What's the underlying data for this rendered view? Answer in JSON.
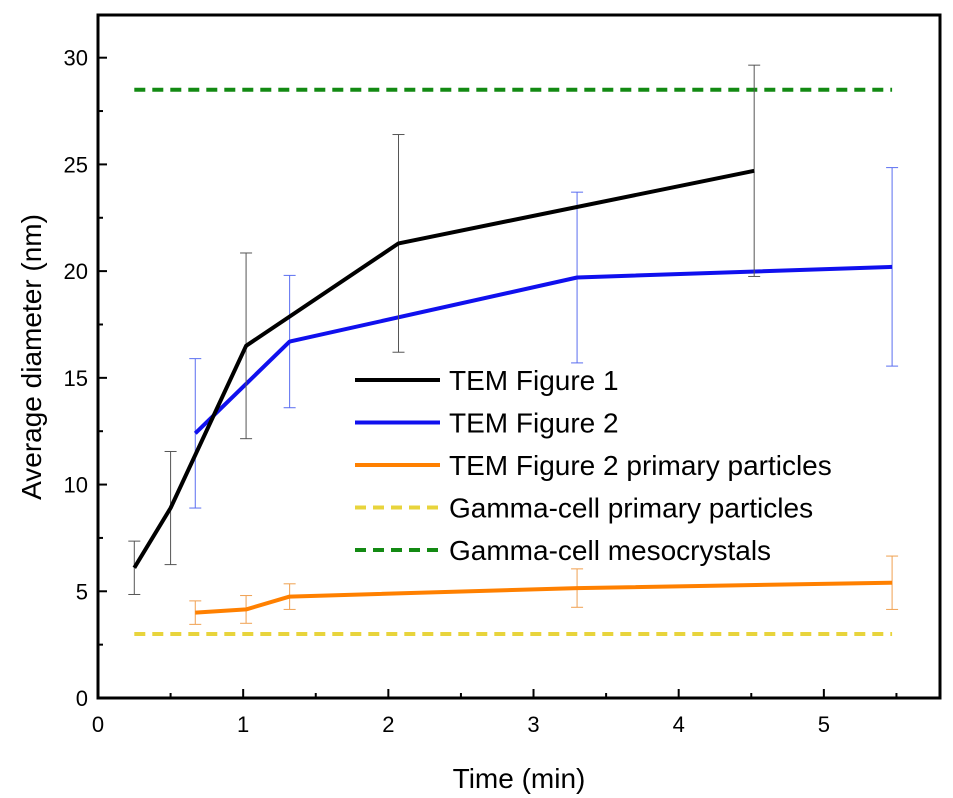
{
  "chart_data": {
    "type": "line",
    "title": "",
    "xlabel": "Time (min)",
    "ylabel": "Average diameter (nm)",
    "xlim": [
      0,
      5.8
    ],
    "ylim": [
      0,
      32
    ],
    "xticks": [
      "0",
      "1",
      "2",
      "3",
      "4",
      "5"
    ],
    "yticks": [
      "0",
      "5",
      "10",
      "15",
      "20",
      "25",
      "30"
    ],
    "grid": false,
    "legend_position": "center-right",
    "series": [
      {
        "name": "TEM Figure 1",
        "color": "#000000",
        "style": "solid",
        "error_color": "#555555",
        "points": [
          {
            "x": 0.25,
            "y": 6.1,
            "err": 1.25
          },
          {
            "x": 0.5,
            "y": 8.9,
            "err": 2.65
          },
          {
            "x": 1.02,
            "y": 16.5,
            "err": 4.35
          },
          {
            "x": 2.07,
            "y": 21.3,
            "err": 5.1
          },
          {
            "x": 4.52,
            "y": 24.7,
            "err": 4.95
          }
        ]
      },
      {
        "name": "TEM Figure 2",
        "color": "#1010ee",
        "style": "solid",
        "error_color": "#5a6ef0",
        "points": [
          {
            "x": 0.67,
            "y": 12.4,
            "err": 3.5
          },
          {
            "x": 1.32,
            "y": 16.7,
            "err": 3.1
          },
          {
            "x": 3.3,
            "y": 19.7,
            "err": 4.0
          },
          {
            "x": 5.47,
            "y": 20.2,
            "err": 4.65
          }
        ]
      },
      {
        "name": "TEM Figure 2 primary particles",
        "color": "#ff8000",
        "style": "solid",
        "error_color": "#f0a050",
        "points": [
          {
            "x": 0.67,
            "y": 4.0,
            "err": 0.55
          },
          {
            "x": 1.02,
            "y": 4.15,
            "err": 0.65
          },
          {
            "x": 1.32,
            "y": 4.75,
            "err": 0.6
          },
          {
            "x": 3.3,
            "y": 5.15,
            "err": 0.9
          },
          {
            "x": 5.47,
            "y": 5.4,
            "err": 1.25
          }
        ]
      },
      {
        "name": "Gamma-cell primary particles",
        "color": "#e8d43c",
        "style": "dashed",
        "x": [
          0.25,
          5.47
        ],
        "values": [
          3.0,
          3.0
        ]
      },
      {
        "name": "Gamma-cell mesocrystals",
        "color": "#138a13",
        "style": "dashed",
        "x": [
          0.25,
          5.47
        ],
        "values": [
          28.5,
          28.5
        ]
      }
    ]
  }
}
